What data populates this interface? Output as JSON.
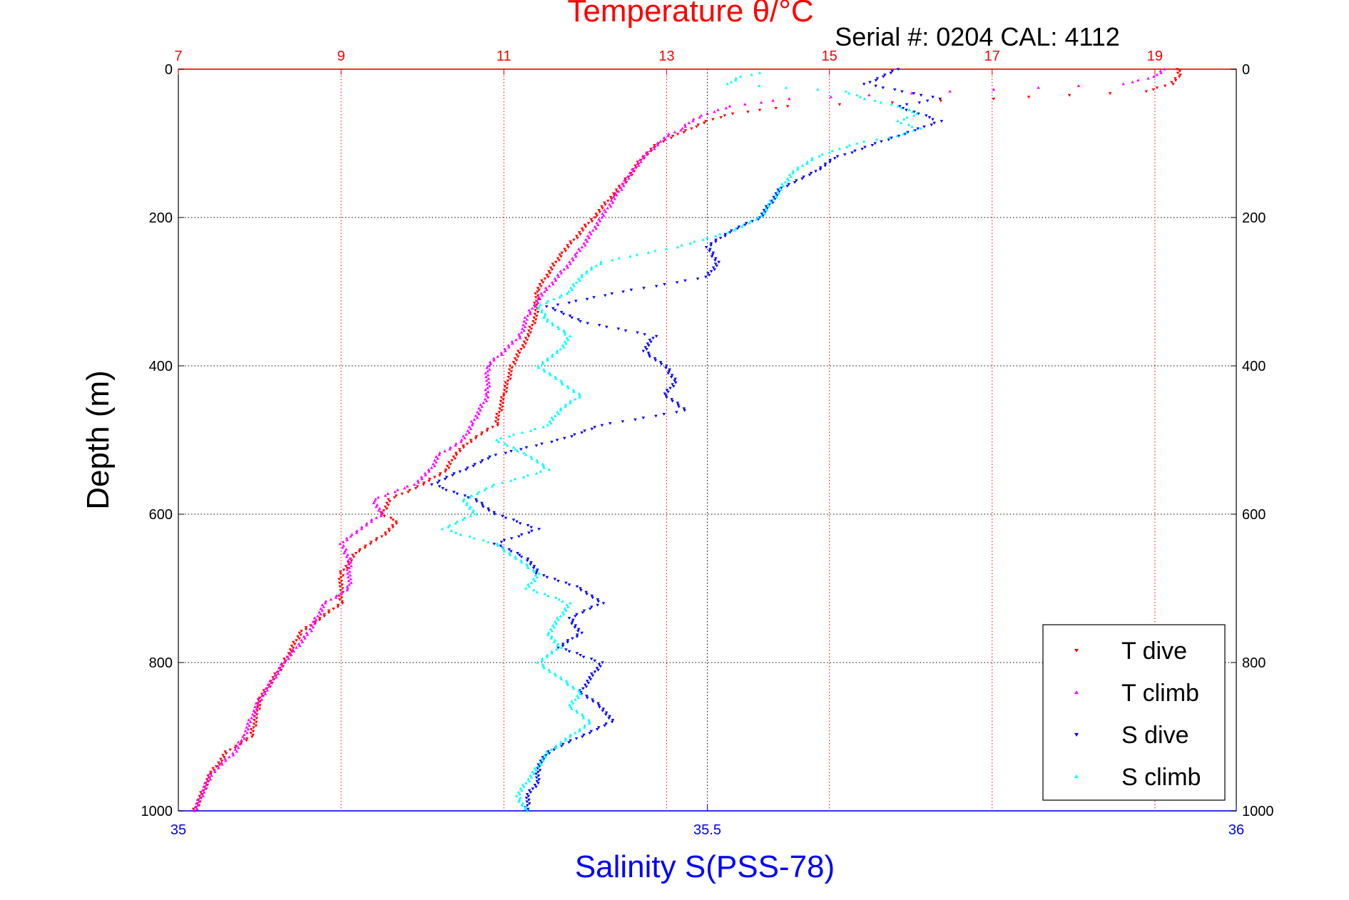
{
  "chart_data": {
    "type": "scatter",
    "title": "Temperature θ/°C",
    "subtitle": "Serial #: 0204  CAL: 4112",
    "xlabel": "Salinity S(PSS-78)",
    "ylabel": "Depth (m)",
    "x_bottom": {
      "label": "Salinity S(PSS-78)",
      "range": [
        35,
        36
      ],
      "ticks": [
        "35",
        "35.5",
        "36"
      ]
    },
    "x_top": {
      "label": "Temperature θ/°C",
      "range": [
        7,
        20
      ],
      "ticks": [
        "7",
        "9",
        "11",
        "13",
        "15",
        "17",
        "19"
      ]
    },
    "y": {
      "label": "Depth (m)",
      "range": [
        0,
        1000
      ],
      "reversed": true,
      "ticks": [
        "0",
        "200",
        "400",
        "600",
        "800",
        "1000"
      ]
    },
    "grid": true,
    "legend_position": "bottom-right",
    "colors": {
      "t_dive": "#ff0000",
      "t_climb": "#ff00ff",
      "s_dive": "#0000ff",
      "s_climb": "#00ffff"
    },
    "series": [
      {
        "name": "T dive",
        "axis": "top",
        "marker": "down-triangle",
        "color": "#ff0000",
        "depth": [
          0,
          10,
          20,
          30,
          40,
          50,
          60,
          70,
          80,
          90,
          100,
          120,
          150,
          200,
          250,
          300,
          330,
          360,
          400,
          440,
          480,
          500,
          520,
          540,
          560,
          580,
          600,
          610,
          630,
          650,
          680,
          720,
          760,
          800,
          850,
          900,
          920,
          950,
          1000
        ],
        "temp": [
          19.3,
          19.3,
          19.2,
          18.9,
          17.0,
          14.5,
          13.8,
          13.5,
          13.3,
          13.1,
          12.9,
          12.7,
          12.5,
          12.1,
          11.7,
          11.4,
          11.4,
          11.3,
          11.1,
          11.0,
          10.9,
          10.6,
          10.4,
          10.3,
          10.0,
          9.6,
          9.5,
          9.7,
          9.5,
          9.2,
          9.0,
          9.0,
          8.5,
          8.3,
          8.0,
          7.9,
          7.6,
          7.4,
          7.2
        ]
      },
      {
        "name": "T climb",
        "axis": "top",
        "marker": "up-triangle",
        "color": "#ff00ff",
        "depth": [
          0,
          10,
          20,
          30,
          40,
          50,
          60,
          70,
          80,
          90,
          100,
          120,
          150,
          200,
          250,
          300,
          330,
          360,
          400,
          440,
          480,
          500,
          520,
          540,
          560,
          580,
          600,
          630,
          640,
          660,
          700,
          720,
          760,
          800,
          850,
          900,
          920,
          950,
          1000
        ],
        "temp": [
          19.1,
          19.0,
          18.6,
          16.5,
          14.5,
          13.8,
          13.5,
          13.3,
          13.2,
          13.0,
          12.9,
          12.7,
          12.5,
          12.2,
          11.9,
          11.5,
          11.3,
          11.2,
          10.8,
          10.8,
          10.6,
          10.5,
          10.2,
          10.1,
          9.9,
          9.4,
          9.5,
          9.1,
          9.0,
          9.1,
          9.1,
          8.8,
          8.6,
          8.3,
          8.0,
          7.8,
          7.7,
          7.4,
          7.2
        ]
      },
      {
        "name": "S dive",
        "axis": "bottom",
        "marker": "down-triangle",
        "color": "#0000ff",
        "depth": [
          0,
          20,
          40,
          50,
          60,
          70,
          80,
          90,
          100,
          120,
          140,
          160,
          180,
          200,
          220,
          240,
          260,
          280,
          300,
          320,
          340,
          360,
          380,
          400,
          420,
          440,
          460,
          480,
          500,
          520,
          540,
          560,
          580,
          600,
          620,
          640,
          660,
          680,
          700,
          720,
          740,
          760,
          780,
          800,
          820,
          840,
          860,
          880,
          900,
          920,
          940,
          960,
          980,
          1000
        ],
        "sal": [
          35.68,
          35.65,
          35.72,
          35.68,
          35.7,
          35.72,
          35.7,
          35.68,
          35.66,
          35.62,
          35.6,
          35.57,
          35.56,
          35.55,
          35.52,
          35.5,
          35.51,
          35.5,
          35.42,
          35.35,
          35.38,
          35.45,
          35.44,
          35.46,
          35.47,
          35.46,
          35.48,
          35.4,
          35.36,
          35.3,
          35.27,
          35.24,
          35.28,
          35.3,
          35.34,
          35.3,
          35.33,
          35.34,
          35.38,
          35.4,
          35.37,
          35.38,
          35.36,
          35.4,
          35.39,
          35.38,
          35.4,
          35.41,
          35.38,
          35.35,
          35.34,
          35.34,
          35.33,
          35.33
        ]
      },
      {
        "name": "S climb",
        "axis": "bottom",
        "marker": "up-triangle",
        "color": "#00ffff",
        "depth": [
          5,
          10,
          20,
          30,
          40,
          50,
          60,
          70,
          80,
          90,
          100,
          120,
          140,
          160,
          180,
          200,
          220,
          240,
          260,
          280,
          300,
          320,
          340,
          360,
          380,
          400,
          420,
          440,
          460,
          480,
          500,
          520,
          540,
          560,
          580,
          600,
          620,
          640,
          660,
          680,
          700,
          720,
          740,
          760,
          780,
          800,
          820,
          840,
          860,
          880,
          900,
          920,
          940,
          960,
          980,
          1000
        ],
        "sal": [
          35.55,
          35.53,
          35.52,
          35.63,
          35.65,
          35.68,
          35.7,
          35.68,
          35.7,
          35.68,
          35.64,
          35.6,
          35.58,
          35.57,
          35.56,
          35.55,
          35.52,
          35.47,
          35.4,
          35.38,
          35.37,
          35.34,
          35.35,
          35.37,
          35.36,
          35.34,
          35.36,
          35.38,
          35.36,
          35.35,
          35.3,
          35.33,
          35.35,
          35.3,
          35.27,
          35.28,
          35.25,
          35.3,
          35.32,
          35.34,
          35.33,
          35.37,
          35.36,
          35.35,
          35.36,
          35.34,
          35.36,
          35.38,
          35.37,
          35.39,
          35.37,
          35.35,
          35.34,
          35.33,
          35.32,
          35.33
        ]
      }
    ]
  }
}
